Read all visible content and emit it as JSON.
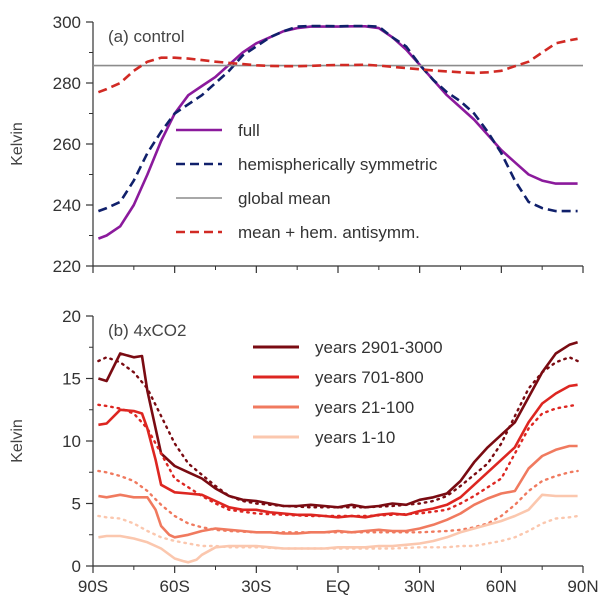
{
  "chart_data": [
    {
      "type": "line",
      "title": "(a) control",
      "ylabel": "Kelvin",
      "ylim": [
        220,
        300
      ],
      "yticks": [
        "220",
        "240",
        "260",
        "280",
        "300"
      ],
      "xlim": [
        -90,
        90
      ],
      "xtick_values": [
        -90,
        -60,
        -30,
        0,
        30,
        60,
        90
      ],
      "legend_placement": "center",
      "series": [
        {
          "name": "full",
          "color": "#8b1a9c",
          "dash": "solid",
          "x": [
            -88,
            -85,
            -80,
            -75,
            -70,
            -65,
            -60,
            -55,
            -50,
            -45,
            -40,
            -35,
            -30,
            -25,
            -20,
            -15,
            -10,
            -5,
            0,
            5,
            10,
            15,
            20,
            25,
            30,
            35,
            40,
            45,
            50,
            55,
            60,
            65,
            70,
            75,
            80,
            85,
            88
          ],
          "y": [
            229,
            230,
            233,
            240,
            250,
            261,
            270,
            276,
            279,
            282,
            286,
            290,
            293,
            295,
            297,
            298,
            298.5,
            298.5,
            298.5,
            298.6,
            298.6,
            298,
            295,
            291,
            286,
            281,
            276,
            272,
            268,
            263,
            258,
            254,
            250,
            248,
            247,
            247,
            247
          ]
        },
        {
          "name": "hemispherically symmetric",
          "color": "#10206b",
          "dash": "dashed",
          "x": [
            -88,
            -85,
            -80,
            -75,
            -70,
            -65,
            -60,
            -55,
            -50,
            -45,
            -40,
            -35,
            -30,
            -25,
            -20,
            -15,
            -10,
            -5,
            0,
            5,
            10,
            15,
            20,
            25,
            30,
            35,
            40,
            45,
            50,
            55,
            60,
            65,
            70,
            75,
            80,
            85,
            88
          ],
          "y": [
            238,
            239,
            241,
            248,
            257,
            264,
            270,
            273,
            276,
            280,
            284,
            289,
            292,
            295,
            297,
            298.5,
            298.7,
            298.7,
            298.6,
            298.7,
            298.7,
            298.5,
            295,
            292,
            286,
            281,
            277,
            274,
            270,
            264,
            257,
            248,
            241,
            239,
            238,
            238,
            238
          ]
        },
        {
          "name": "global mean",
          "color": "#8c8c8c",
          "dash": "solid",
          "x": [
            -90,
            90
          ],
          "y": [
            285.7,
            285.7
          ]
        },
        {
          "name": "mean + hem. antisymm.",
          "color": "#d12a24",
          "dash": "dashed",
          "x": [
            -88,
            -85,
            -80,
            -75,
            -70,
            -65,
            -60,
            -55,
            -50,
            -45,
            -40,
            -35,
            -30,
            -25,
            -20,
            -15,
            -10,
            -5,
            0,
            5,
            10,
            15,
            20,
            25,
            30,
            35,
            40,
            45,
            50,
            55,
            60,
            65,
            70,
            75,
            80,
            85,
            88
          ],
          "y": [
            277,
            278,
            280,
            284,
            287,
            288.3,
            288.3,
            288,
            287.5,
            287,
            286.6,
            286.2,
            285.8,
            285.6,
            285.5,
            285.5,
            285.6,
            285.8,
            285.9,
            285.9,
            286,
            285.7,
            285.3,
            284.9,
            284.5,
            284.1,
            283.8,
            283.5,
            283.3,
            283.5,
            284,
            285.5,
            287,
            290,
            293,
            294,
            294.5
          ]
        }
      ]
    },
    {
      "type": "line",
      "title": "(b) 4xCO2",
      "ylabel": "Kelvin",
      "ylim": [
        0,
        20
      ],
      "yticks": [
        "0",
        "5",
        "10",
        "15",
        "20"
      ],
      "xlim": [
        -90,
        90
      ],
      "xtick_values": [
        -90,
        -60,
        -30,
        0,
        30,
        60,
        90
      ],
      "xticks": [
        "90S",
        "60S",
        "30S",
        "EQ",
        "30N",
        "60N",
        "90N"
      ],
      "legend_placement": "top-right",
      "series": [
        {
          "name": "years 2901-3000",
          "color": "#7a0b12",
          "x": [
            -88,
            -85,
            -80,
            -75,
            -72,
            -70,
            -67,
            -65,
            -60,
            -55,
            -50,
            -45,
            -40,
            -35,
            -30,
            -25,
            -20,
            -15,
            -10,
            -5,
            0,
            5,
            10,
            15,
            20,
            25,
            30,
            35,
            40,
            45,
            50,
            55,
            60,
            65,
            70,
            75,
            80,
            85,
            88
          ],
          "y": [
            15,
            14.8,
            17,
            16.7,
            16.8,
            14,
            11,
            9,
            8,
            7.5,
            7,
            6.2,
            5.6,
            5.3,
            5.2,
            5.0,
            4.8,
            4.8,
            4.9,
            4.8,
            4.7,
            4.9,
            4.7,
            4.8,
            5.0,
            4.9,
            5.3,
            5.5,
            5.8,
            6.8,
            8.3,
            9.5,
            10.5,
            11.5,
            13.5,
            15.5,
            17,
            17.7,
            17.9
          ],
          "sym_x": [
            -88,
            -85,
            -80,
            -75,
            -70,
            -65,
            -60,
            -55,
            -50,
            -45,
            -40,
            -35,
            -30,
            -20,
            -10,
            0,
            10,
            20,
            30,
            35,
            40,
            45,
            50,
            55,
            60,
            65,
            70,
            75,
            80,
            85,
            88
          ],
          "sym_y": [
            16.4,
            16.7,
            16.3,
            15.5,
            14.2,
            12.0,
            9.8,
            8.2,
            7.3,
            6.4,
            5.6,
            5.2,
            5.0,
            4.8,
            4.7,
            4.7,
            4.7,
            4.8,
            5.0,
            5.2,
            5.6,
            6.4,
            7.3,
            8.2,
            9.8,
            12.0,
            14.2,
            15.5,
            16.3,
            16.7,
            16.4
          ],
          "anti_x": [
            -90,
            90
          ],
          "anti_y": [
            0,
            0
          ]
        },
        {
          "name": "years 701-800",
          "color": "#dd2621",
          "x": [
            -88,
            -85,
            -80,
            -75,
            -72,
            -70,
            -67,
            -65,
            -60,
            -55,
            -50,
            -45,
            -40,
            -35,
            -30,
            -25,
            -20,
            -15,
            -10,
            -5,
            0,
            5,
            10,
            15,
            20,
            25,
            30,
            35,
            40,
            45,
            50,
            55,
            60,
            65,
            70,
            75,
            80,
            85,
            88
          ],
          "y": [
            11.3,
            11.4,
            12.5,
            12.4,
            12.2,
            11,
            8.5,
            6.5,
            5.9,
            5.8,
            5.7,
            5.2,
            4.7,
            4.5,
            4.5,
            4.3,
            4.2,
            4.1,
            4.1,
            4.0,
            3.9,
            4.0,
            3.9,
            4.1,
            4.2,
            4.1,
            4.4,
            4.6,
            4.9,
            5.5,
            6.5,
            7.5,
            8.5,
            9.5,
            11.5,
            13.0,
            13.8,
            14.4,
            14.5
          ],
          "sym_x": [
            -88,
            -85,
            -80,
            -75,
            -70,
            -65,
            -60,
            -55,
            -50,
            -45,
            -40,
            -30,
            -20,
            -10,
            0,
            10,
            20,
            30,
            40,
            45,
            50,
            55,
            60,
            65,
            70,
            75,
            80,
            85,
            88
          ],
          "sym_y": [
            12.9,
            12.8,
            12.6,
            12.2,
            11.0,
            9.0,
            7.0,
            6.3,
            5.6,
            5.0,
            4.5,
            4.2,
            4.1,
            4.0,
            4.0,
            4.0,
            4.1,
            4.2,
            4.5,
            5.0,
            5.6,
            6.3,
            7.0,
            9.0,
            11.0,
            12.2,
            12.6,
            12.8,
            12.9
          ]
        },
        {
          "name": "years 21-100",
          "color": "#f07a5f",
          "x": [
            -88,
            -85,
            -80,
            -75,
            -70,
            -67,
            -65,
            -62,
            -60,
            -55,
            -50,
            -45,
            -40,
            -35,
            -30,
            -25,
            -20,
            -15,
            -10,
            -5,
            0,
            5,
            10,
            15,
            20,
            25,
            30,
            35,
            40,
            45,
            50,
            55,
            60,
            65,
            70,
            75,
            80,
            85,
            88
          ],
          "y": [
            5.6,
            5.5,
            5.7,
            5.5,
            5.5,
            4.5,
            3.2,
            2.5,
            2.3,
            2.5,
            2.8,
            3.0,
            2.9,
            2.8,
            2.7,
            2.7,
            2.6,
            2.6,
            2.7,
            2.7,
            2.8,
            2.7,
            2.8,
            2.9,
            2.8,
            2.8,
            3.0,
            3.3,
            3.7,
            4.2,
            4.9,
            5.4,
            5.8,
            6.0,
            7.8,
            8.8,
            9.3,
            9.6,
            9.6
          ],
          "sym_x": [
            -88,
            -85,
            -80,
            -75,
            -70,
            -65,
            -60,
            -55,
            -50,
            -45,
            -40,
            -30,
            -20,
            -10,
            0,
            10,
            20,
            30,
            40,
            45,
            50,
            55,
            60,
            65,
            70,
            75,
            80,
            85,
            88
          ],
          "sym_y": [
            7.6,
            7.5,
            7.2,
            6.8,
            6.0,
            4.9,
            4.0,
            3.4,
            3.1,
            2.9,
            2.8,
            2.7,
            2.7,
            2.7,
            2.7,
            2.7,
            2.7,
            2.7,
            2.8,
            2.9,
            3.1,
            3.4,
            4.0,
            4.9,
            6.0,
            6.8,
            7.2,
            7.5,
            7.6
          ]
        },
        {
          "name": "years 1-10",
          "color": "#fbc7ae",
          "x": [
            -88,
            -85,
            -80,
            -75,
            -70,
            -65,
            -60,
            -57,
            -55,
            -52,
            -50,
            -45,
            -40,
            -35,
            -30,
            -25,
            -20,
            -15,
            -10,
            -5,
            0,
            5,
            10,
            15,
            20,
            25,
            30,
            35,
            40,
            45,
            50,
            55,
            60,
            65,
            70,
            75,
            80,
            85,
            88
          ],
          "y": [
            2.3,
            2.4,
            2.4,
            2.2,
            1.9,
            1.4,
            0.6,
            0.4,
            0.3,
            0.5,
            0.9,
            1.5,
            1.6,
            1.6,
            1.6,
            1.5,
            1.4,
            1.4,
            1.4,
            1.4,
            1.5,
            1.5,
            1.5,
            1.6,
            1.6,
            1.7,
            1.8,
            2.0,
            2.3,
            2.7,
            3.0,
            3.3,
            3.6,
            4.0,
            4.5,
            5.7,
            5.6,
            5.6,
            5.6
          ],
          "sym_x": [
            -88,
            -85,
            -80,
            -75,
            -70,
            -65,
            -60,
            -55,
            -50,
            -45,
            -40,
            -30,
            -20,
            -10,
            0,
            10,
            20,
            30,
            40,
            45,
            50,
            55,
            60,
            65,
            70,
            75,
            80,
            85,
            88
          ],
          "sym_y": [
            4.0,
            3.9,
            3.8,
            3.4,
            2.8,
            2.3,
            2.0,
            1.8,
            1.6,
            1.6,
            1.5,
            1.5,
            1.4,
            1.4,
            1.4,
            1.4,
            1.4,
            1.5,
            1.5,
            1.6,
            1.6,
            1.8,
            2.0,
            2.3,
            2.8,
            3.4,
            3.8,
            3.9,
            4.0
          ]
        }
      ]
    }
  ]
}
